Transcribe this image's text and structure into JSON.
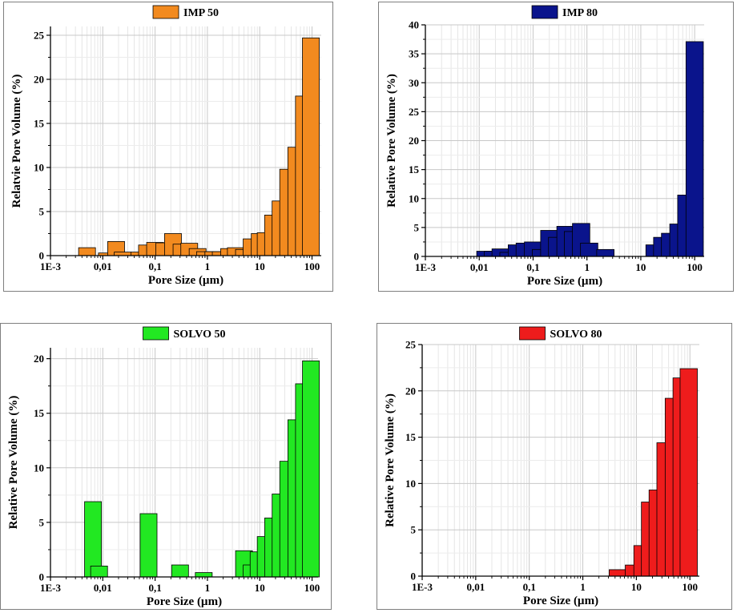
{
  "chart_data": [
    {
      "type": "bar",
      "legend": "IMP 50",
      "xlabel": "Pore Size (µm)",
      "ylabel": "Relatvie Pore Volume (%)",
      "xscale": "log",
      "xlim": [
        0.001,
        150
      ],
      "ylim": [
        0,
        26
      ],
      "yticks": [
        0,
        5,
        10,
        15,
        20,
        25
      ],
      "xtick_labels": [
        "1E-3",
        "0,01",
        "0,1",
        "1",
        "10",
        "100"
      ],
      "legend_placement": "top-center",
      "grid": true,
      "color": "#f28a1f",
      "bars": [
        {
          "x": 0.005,
          "y": 0.9
        },
        {
          "x": 0.012,
          "y": 0.3
        },
        {
          "x": 0.018,
          "y": 1.6
        },
        {
          "x": 0.024,
          "y": 0.4
        },
        {
          "x": 0.05,
          "y": 0.4
        },
        {
          "x": 0.07,
          "y": 1.2
        },
        {
          "x": 0.1,
          "y": 1.5
        },
        {
          "x": 0.15,
          "y": 1.45
        },
        {
          "x": 0.22,
          "y": 2.5
        },
        {
          "x": 0.32,
          "y": 1.3
        },
        {
          "x": 0.45,
          "y": 1.4
        },
        {
          "x": 0.65,
          "y": 0.8
        },
        {
          "x": 0.9,
          "y": 0.45
        },
        {
          "x": 1.3,
          "y": 0.45
        },
        {
          "x": 1.8,
          "y": 0.45
        },
        {
          "x": 2.6,
          "y": 0.8
        },
        {
          "x": 3.5,
          "y": 0.9
        },
        {
          "x": 5,
          "y": 0.7
        },
        {
          "x": 7,
          "y": 1.9
        },
        {
          "x": 10,
          "y": 2.5
        },
        {
          "x": 13,
          "y": 2.6
        },
        {
          "x": 18,
          "y": 4.6
        },
        {
          "x": 25,
          "y": 6.2
        },
        {
          "x": 35,
          "y": 9.8
        },
        {
          "x": 50,
          "y": 12.3
        },
        {
          "x": 70,
          "y": 18.1
        },
        {
          "x": 95,
          "y": 24.7
        }
      ]
    },
    {
      "type": "bar",
      "legend": "IMP 80",
      "xlabel": "Pore Size (µm)",
      "ylabel": "Relative Pore Volume (%)",
      "xscale": "log",
      "xlim": [
        0.001,
        150
      ],
      "ylim": [
        0,
        40
      ],
      "yticks": [
        0,
        5,
        10,
        15,
        20,
        25,
        30,
        35,
        40
      ],
      "xtick_labels": [
        "1E-3",
        "0,01",
        "0,1",
        "1",
        "10",
        "100"
      ],
      "legend_placement": "top-center",
      "grid": true,
      "color": "#0a148c",
      "bars": [
        {
          "x": 0.013,
          "y": 0.9
        },
        {
          "x": 0.018,
          "y": 0.9
        },
        {
          "x": 0.025,
          "y": 1.3
        },
        {
          "x": 0.035,
          "y": 0.7
        },
        {
          "x": 0.05,
          "y": 2.0
        },
        {
          "x": 0.07,
          "y": 2.3
        },
        {
          "x": 0.1,
          "y": 2.5
        },
        {
          "x": 0.14,
          "y": 1.2
        },
        {
          "x": 0.2,
          "y": 4.5
        },
        {
          "x": 0.28,
          "y": 3.3
        },
        {
          "x": 0.4,
          "y": 5.2
        },
        {
          "x": 0.55,
          "y": 4.3
        },
        {
          "x": 0.78,
          "y": 5.7
        },
        {
          "x": 1.1,
          "y": 2.3
        },
        {
          "x": 2.2,
          "y": 1.2
        },
        {
          "x": 18,
          "y": 2.0
        },
        {
          "x": 25,
          "y": 3.3
        },
        {
          "x": 35,
          "y": 4.0
        },
        {
          "x": 50,
          "y": 5.6
        },
        {
          "x": 70,
          "y": 10.6
        },
        {
          "x": 100,
          "y": 37.1
        }
      ]
    },
    {
      "type": "bar",
      "legend": "SOLVO 50",
      "xlabel": "Pore Size (µm)",
      "ylabel": "Relative Pore Volume (%)",
      "xscale": "log",
      "xlim": [
        0.001,
        130
      ],
      "ylim": [
        0,
        21
      ],
      "yticks": [
        0,
        5,
        10,
        15,
        20
      ],
      "xtick_labels": [
        "1E-3",
        "0,01",
        "0,1",
        "1",
        "10",
        "100"
      ],
      "legend_placement": "top-center",
      "grid": true,
      "color": "#22e822",
      "bars": [
        {
          "x": 0.0065,
          "y": 6.9
        },
        {
          "x": 0.0085,
          "y": 1.0
        },
        {
          "x": 0.075,
          "y": 5.8
        },
        {
          "x": 0.3,
          "y": 1.1
        },
        {
          "x": 0.85,
          "y": 0.4
        },
        {
          "x": 5,
          "y": 2.4
        },
        {
          "x": 7,
          "y": 1.1
        },
        {
          "x": 9.5,
          "y": 2.3
        },
        {
          "x": 13,
          "y": 3.7
        },
        {
          "x": 18,
          "y": 5.4
        },
        {
          "x": 25,
          "y": 7.6
        },
        {
          "x": 35,
          "y": 10.6
        },
        {
          "x": 50,
          "y": 14.4
        },
        {
          "x": 70,
          "y": 17.7
        },
        {
          "x": 95,
          "y": 19.8
        }
      ]
    },
    {
      "type": "bar",
      "legend": "SOLVO 80",
      "xlabel": "Pore Size (µm)",
      "ylabel": "Relative Pore Volume (%)",
      "xscale": "log",
      "xlim": [
        0.001,
        150
      ],
      "ylim": [
        0,
        25
      ],
      "yticks": [
        0,
        5,
        10,
        15,
        20,
        25
      ],
      "xtick_labels": [
        "1E-3",
        "0,01",
        "0,1",
        "1",
        "10",
        "100"
      ],
      "legend_placement": "top-center",
      "grid": true,
      "color": "#ee1c1c",
      "bars": [
        {
          "x": 4.5,
          "y": 0.7
        },
        {
          "x": 9,
          "y": 1.2
        },
        {
          "x": 13,
          "y": 3.3
        },
        {
          "x": 18,
          "y": 8.0
        },
        {
          "x": 25,
          "y": 9.3
        },
        {
          "x": 35,
          "y": 14.4
        },
        {
          "x": 50,
          "y": 19.2
        },
        {
          "x": 70,
          "y": 21.4
        },
        {
          "x": 95,
          "y": 22.4
        }
      ]
    }
  ]
}
